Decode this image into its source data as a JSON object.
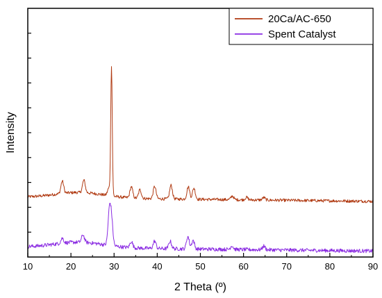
{
  "chart_data": {
    "type": "line",
    "xlabel": "2 Theta (º)",
    "ylabel": "Intensity",
    "xlim": [
      10,
      90
    ],
    "ylim": [
      0,
      100
    ],
    "x_ticks": [
      10,
      20,
      30,
      40,
      50,
      60,
      70,
      80,
      90
    ],
    "grid": false,
    "legend_position": "top-right",
    "series": [
      {
        "name": "20Ca/AC-650",
        "color": "#b03a12",
        "baseline": 24,
        "peaks": [
          {
            "x": 18.0,
            "h": 5.0
          },
          {
            "x": 23.0,
            "h": 5.0
          },
          {
            "x": 28.8,
            "h": 3.0
          },
          {
            "x": 29.4,
            "h": 52.0
          },
          {
            "x": 34.0,
            "h": 4.5
          },
          {
            "x": 36.0,
            "h": 3.5
          },
          {
            "x": 39.4,
            "h": 5.0
          },
          {
            "x": 43.2,
            "h": 5.5
          },
          {
            "x": 47.2,
            "h": 5.0
          },
          {
            "x": 48.5,
            "h": 4.5
          },
          {
            "x": 57.4,
            "h": 1.5
          },
          {
            "x": 60.7,
            "h": 1.0
          },
          {
            "x": 64.7,
            "h": 1.0
          }
        ]
      },
      {
        "name": "Spent Catalyst",
        "color": "#8a2be2",
        "baseline": 4,
        "peaks": [
          {
            "x": 18.0,
            "h": 2.0
          },
          {
            "x": 22.8,
            "h": 3.0
          },
          {
            "x": 28.9,
            "h": 13.0
          },
          {
            "x": 29.4,
            "h": 10.0
          },
          {
            "x": 34.0,
            "h": 2.5
          },
          {
            "x": 39.4,
            "h": 3.0
          },
          {
            "x": 43.0,
            "h": 3.0
          },
          {
            "x": 47.1,
            "h": 5.0
          },
          {
            "x": 48.3,
            "h": 3.5
          },
          {
            "x": 57.3,
            "h": 1.5
          },
          {
            "x": 64.7,
            "h": 1.5
          }
        ]
      }
    ]
  }
}
